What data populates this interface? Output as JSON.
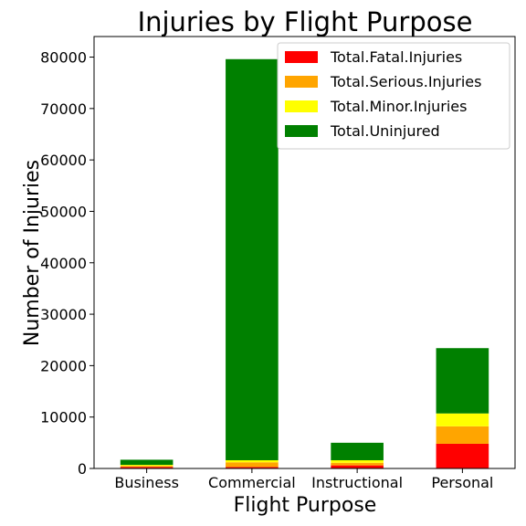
{
  "chart_data": {
    "type": "bar",
    "stacked": true,
    "title": "Injuries by Flight Purpose",
    "xlabel": "Flight Purpose",
    "ylabel": "Number of Injuries",
    "categories": [
      "Business",
      "Commercial",
      "Instructional",
      "Personal"
    ],
    "ylim": [
      0,
      84000
    ],
    "yticks": [
      0,
      10000,
      20000,
      30000,
      40000,
      50000,
      60000,
      70000,
      80000
    ],
    "grid": false,
    "legend_position": "top-right",
    "series": [
      {
        "name": "Total.Fatal.Injuries",
        "color": "#ff0000",
        "values": [
          300,
          300,
          600,
          4800
        ]
      },
      {
        "name": "Total.Serious.Injuries",
        "color": "#ffa500",
        "values": [
          200,
          900,
          500,
          3400
        ]
      },
      {
        "name": "Total.Minor.Injuries",
        "color": "#ffff00",
        "values": [
          200,
          400,
          500,
          2500
        ]
      },
      {
        "name": "Total.Uninjured",
        "color": "#008000",
        "values": [
          1000,
          78000,
          3400,
          12700
        ]
      }
    ]
  }
}
